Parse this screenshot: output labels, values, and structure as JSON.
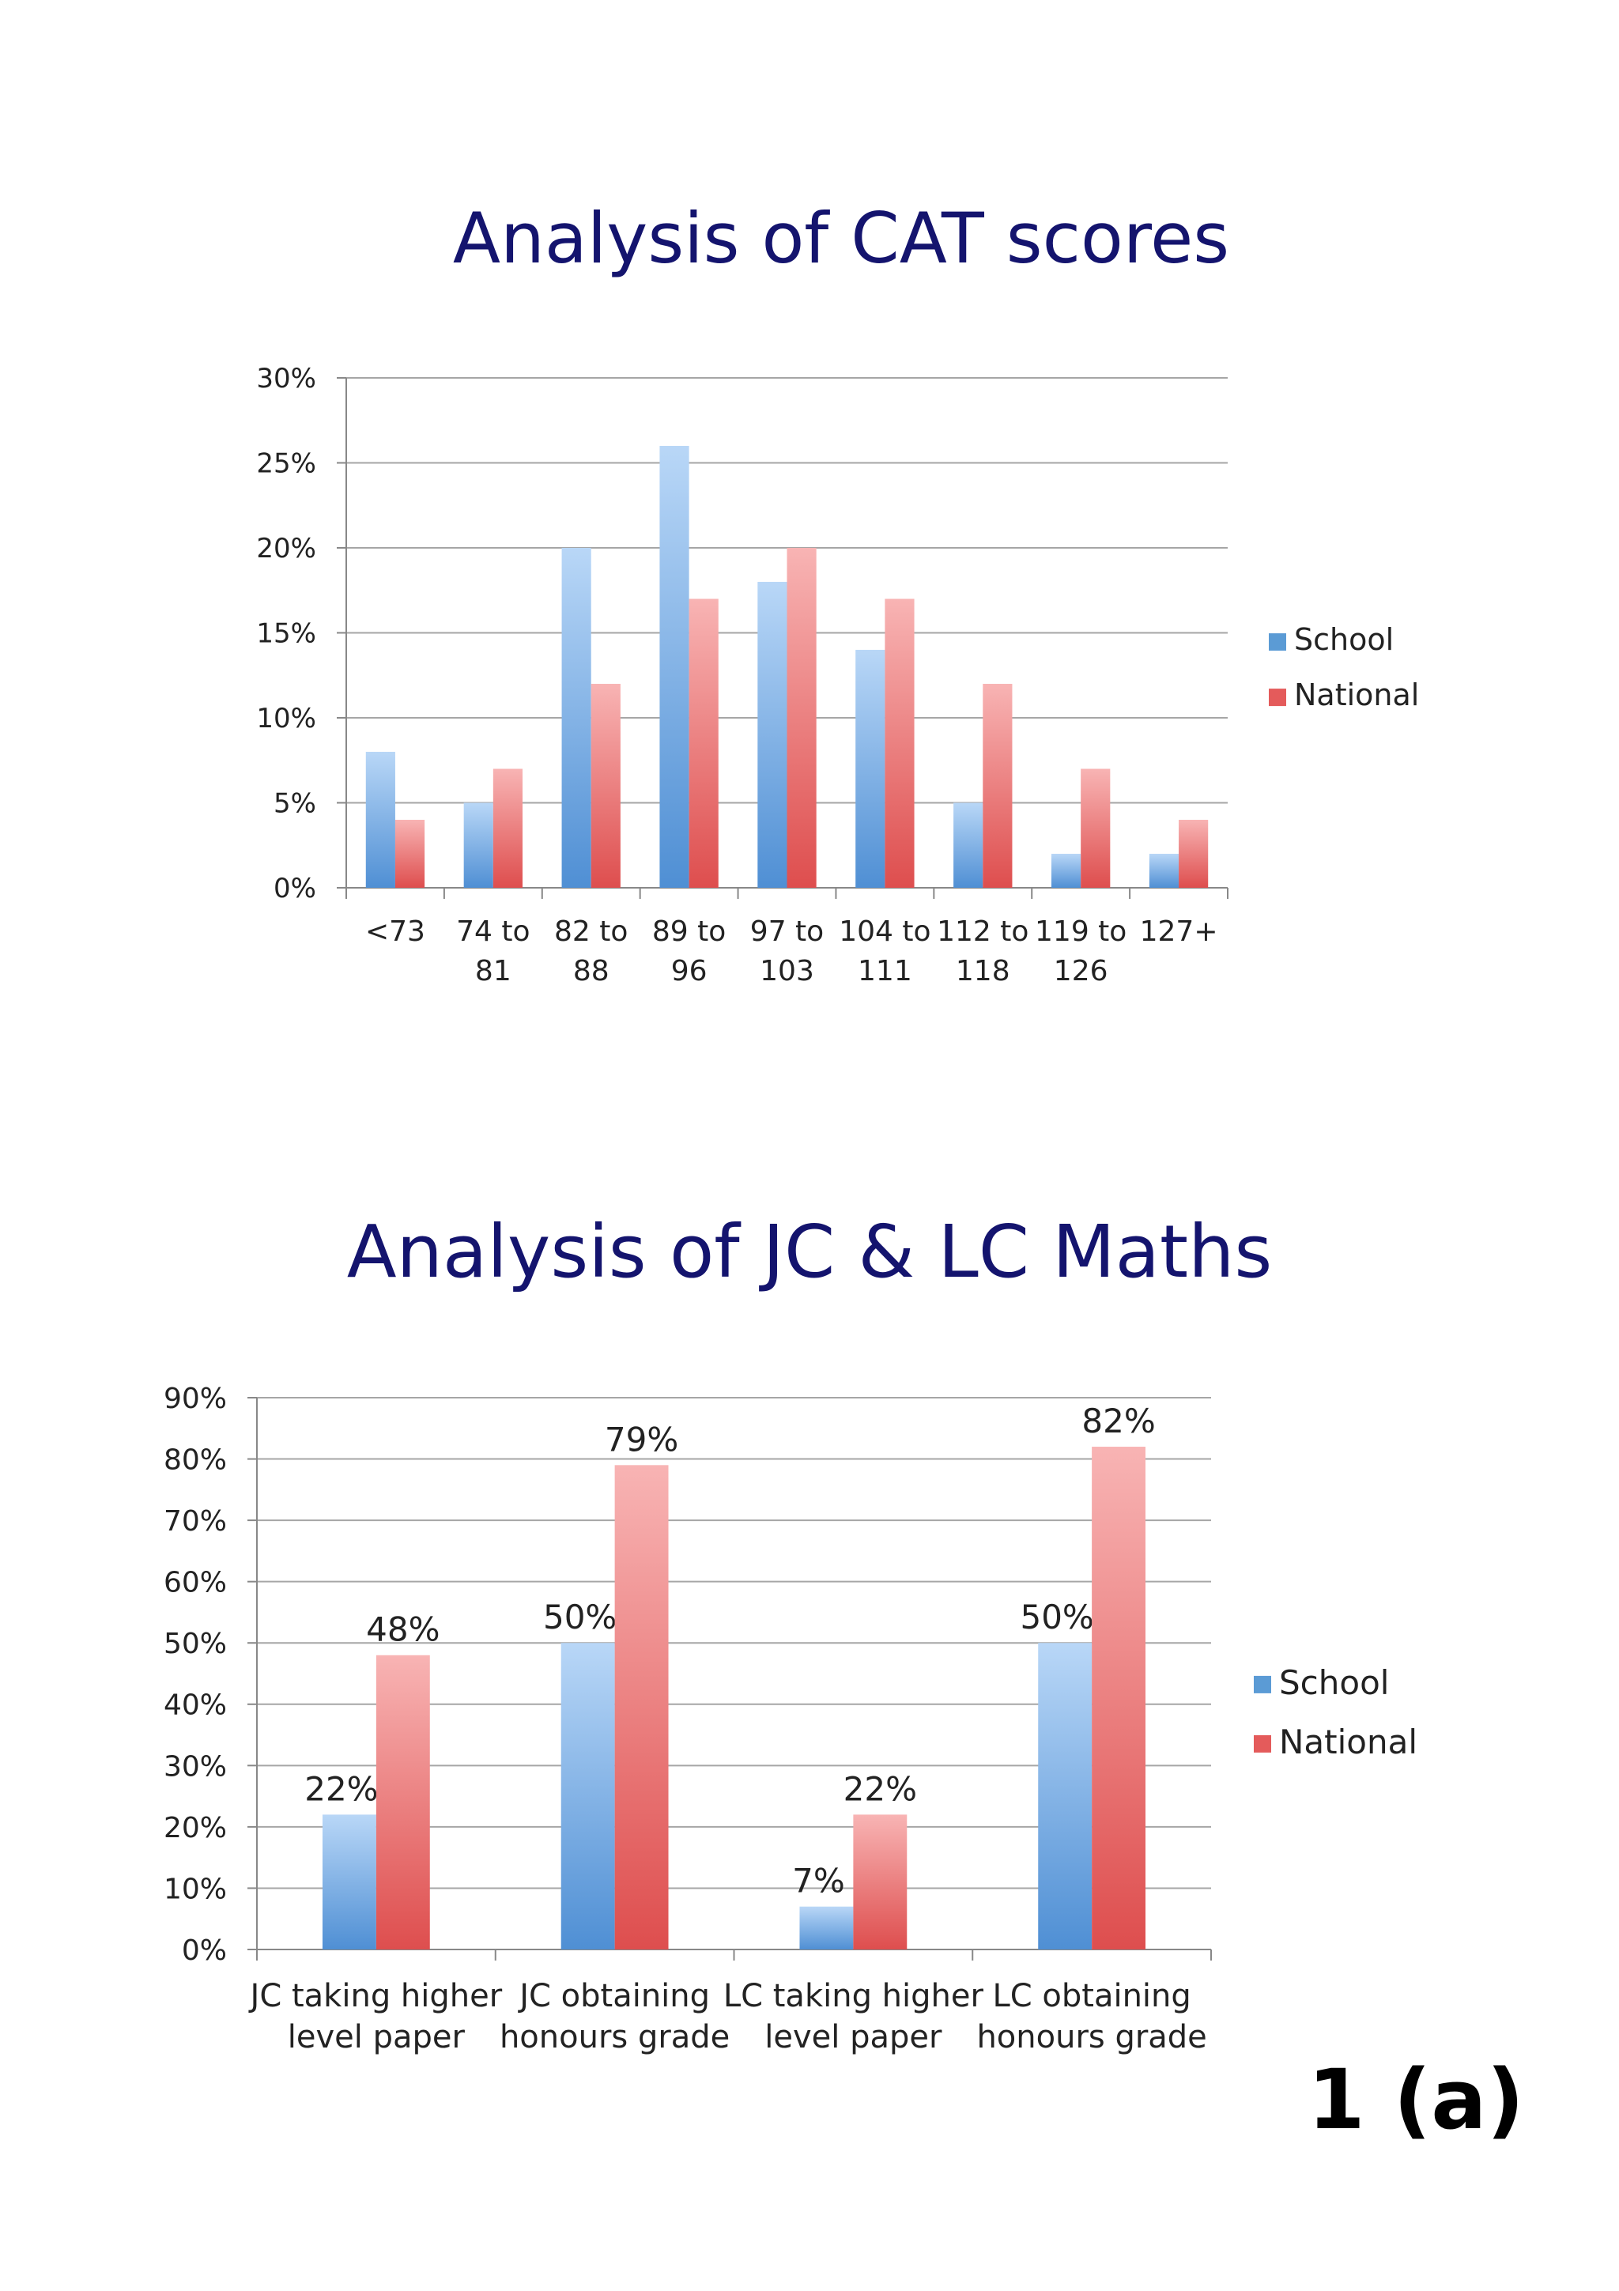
{
  "figure_label": "1 (a)",
  "colors": {
    "school": "#5b9bd5",
    "national": "#e45b5b",
    "title": "#14146e",
    "grid": "#a6a6a6"
  },
  "chart_data": [
    {
      "id": "cat",
      "type": "bar",
      "title": "Analysis of CAT scores",
      "categories": [
        [
          "<73"
        ],
        [
          "74 to",
          "81"
        ],
        [
          "82 to",
          "88"
        ],
        [
          "89 to",
          "96"
        ],
        [
          "97 to",
          "103"
        ],
        [
          "104 to",
          "111"
        ],
        [
          "112 to",
          "118"
        ],
        [
          "119 to",
          "126"
        ],
        [
          "127+"
        ]
      ],
      "series": [
        {
          "name": "School",
          "values": [
            8,
            5,
            20,
            26,
            18,
            14,
            5,
            2,
            2
          ]
        },
        {
          "name": "National",
          "values": [
            4,
            7,
            12,
            17,
            20,
            17,
            12,
            7,
            4
          ]
        }
      ],
      "ylim": [
        0,
        30
      ],
      "yticks": [
        0,
        5,
        10,
        15,
        20,
        25,
        30
      ],
      "tick_suffix": "%",
      "grid": true,
      "data_labels": false,
      "legend": "right"
    },
    {
      "id": "jc",
      "type": "bar",
      "title": "Analysis of JC & LC Maths",
      "categories": [
        [
          "JC taking higher",
          "level paper"
        ],
        [
          "JC obtaining",
          "honours grade"
        ],
        [
          "LC taking higher",
          "level paper"
        ],
        [
          "LC obtaining",
          "honours grade"
        ]
      ],
      "series": [
        {
          "name": "School",
          "values": [
            22,
            50,
            7,
            50
          ]
        },
        {
          "name": "National",
          "values": [
            48,
            79,
            22,
            82
          ]
        }
      ],
      "ylim": [
        0,
        90
      ],
      "yticks": [
        0,
        10,
        20,
        30,
        40,
        50,
        60,
        70,
        80,
        90
      ],
      "tick_suffix": "%",
      "grid": true,
      "data_labels": true,
      "legend": "right"
    }
  ]
}
